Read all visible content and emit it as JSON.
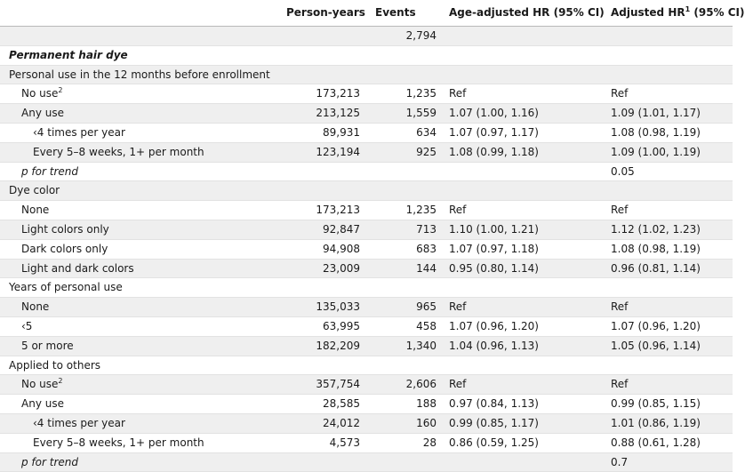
{
  "header": {
    "label_col": "",
    "person_years": "Person-years",
    "events": "Events",
    "age_adjusted": "Age-adjusted HR (95% CI)",
    "adjusted": "Adjusted HR",
    "adjusted_sup": "1",
    "adjusted_ci": " (95% CI)"
  },
  "rows": [
    {
      "label": "",
      "indent": 0,
      "style": "",
      "sup": "",
      "py": "",
      "events": "2,794",
      "hr1": "",
      "hr2": ""
    },
    {
      "label": "Permanent hair dye",
      "indent": 0,
      "style": "bi",
      "sup": "",
      "py": "",
      "events": "",
      "hr1": "",
      "hr2": ""
    },
    {
      "label": "Personal use in the 12 months before enrollment",
      "indent": 0,
      "style": "",
      "sup": "",
      "py": "",
      "events": "",
      "hr1": "",
      "hr2": ""
    },
    {
      "label": "No use",
      "indent": 1,
      "style": "",
      "sup": "2",
      "py": "173,213",
      "events": "1,235",
      "hr1": "Ref",
      "hr2": "Ref"
    },
    {
      "label": "Any use",
      "indent": 1,
      "style": "",
      "sup": "",
      "py": "213,125",
      "events": "1,559",
      "hr1": "1.07 (1.00, 1.16)",
      "hr2": "1.09 (1.01, 1.17)"
    },
    {
      "label": "‹4 times per year",
      "indent": 2,
      "style": "",
      "sup": "",
      "py": "89,931",
      "events": "634",
      "hr1": "1.07 (0.97, 1.17)",
      "hr2": "1.08 (0.98, 1.19)"
    },
    {
      "label": "Every 5–8 weeks, 1+ per month",
      "indent": 2,
      "style": "",
      "sup": "",
      "py": "123,194",
      "events": "925",
      "hr1": "1.08 (0.99, 1.18)",
      "hr2": "1.09 (1.00, 1.19)"
    },
    {
      "label": "p for trend",
      "indent": 1,
      "style": "it",
      "sup": "",
      "py": "",
      "events": "",
      "hr1": "",
      "hr2": "0.05"
    },
    {
      "label": "Dye color",
      "indent": 0,
      "style": "",
      "sup": "",
      "py": "",
      "events": "",
      "hr1": "",
      "hr2": ""
    },
    {
      "label": "None",
      "indent": 1,
      "style": "",
      "sup": "",
      "py": "173,213",
      "events": "1,235",
      "hr1": "Ref",
      "hr2": "Ref"
    },
    {
      "label": "Light colors only",
      "indent": 1,
      "style": "",
      "sup": "",
      "py": "92,847",
      "events": "713",
      "hr1": "1.10 (1.00, 1.21)",
      "hr2": "1.12 (1.02, 1.23)"
    },
    {
      "label": "Dark colors only",
      "indent": 1,
      "style": "",
      "sup": "",
      "py": "94,908",
      "events": "683",
      "hr1": "1.07 (0.97, 1.18)",
      "hr2": "1.08 (0.98, 1.19)"
    },
    {
      "label": "Light and dark colors",
      "indent": 1,
      "style": "",
      "sup": "",
      "py": "23,009",
      "events": "144",
      "hr1": "0.95 (0.80, 1.14)",
      "hr2": "0.96 (0.81, 1.14)"
    },
    {
      "label": "Years of personal use",
      "indent": 0,
      "style": "",
      "sup": "",
      "py": "",
      "events": "",
      "hr1": "",
      "hr2": ""
    },
    {
      "label": "None",
      "indent": 1,
      "style": "",
      "sup": "",
      "py": "135,033",
      "events": "965",
      "hr1": "Ref",
      "hr2": "Ref"
    },
    {
      "label": "‹5",
      "indent": 1,
      "style": "",
      "sup": "",
      "py": "63,995",
      "events": "458",
      "hr1": "1.07 (0.96, 1.20)",
      "hr2": "1.07 (0.96, 1.20)"
    },
    {
      "label": "5 or more",
      "indent": 1,
      "style": "",
      "sup": "",
      "py": "182,209",
      "events": "1,340",
      "hr1": "1.04 (0.96, 1.13)",
      "hr2": "1.05 (0.96, 1.14)"
    },
    {
      "label": "Applied to others",
      "indent": 0,
      "style": "",
      "sup": "",
      "py": "",
      "events": "",
      "hr1": "",
      "hr2": ""
    },
    {
      "label": "No use",
      "indent": 1,
      "style": "",
      "sup": "2",
      "py": "357,754",
      "events": "2,606",
      "hr1": "Ref",
      "hr2": "Ref"
    },
    {
      "label": "Any use",
      "indent": 1,
      "style": "",
      "sup": "",
      "py": "28,585",
      "events": "188",
      "hr1": "0.97 (0.84, 1.13)",
      "hr2": "0.99 (0.85, 1.15)"
    },
    {
      "label": "‹4 times per year",
      "indent": 2,
      "style": "",
      "sup": "",
      "py": "24,012",
      "events": "160",
      "hr1": "0.99 (0.85, 1.17)",
      "hr2": "1.01 (0.86, 1.19)"
    },
    {
      "label": "Every 5–8 weeks, 1+ per month",
      "indent": 2,
      "style": "",
      "sup": "",
      "py": "4,573",
      "events": "28",
      "hr1": "0.86 (0.59, 1.25)",
      "hr2": "0.88 (0.61, 1.28)"
    },
    {
      "label": "p for trend",
      "indent": 1,
      "style": "it",
      "sup": "",
      "py": "",
      "events": "",
      "hr1": "",
      "hr2": "0.7"
    }
  ]
}
